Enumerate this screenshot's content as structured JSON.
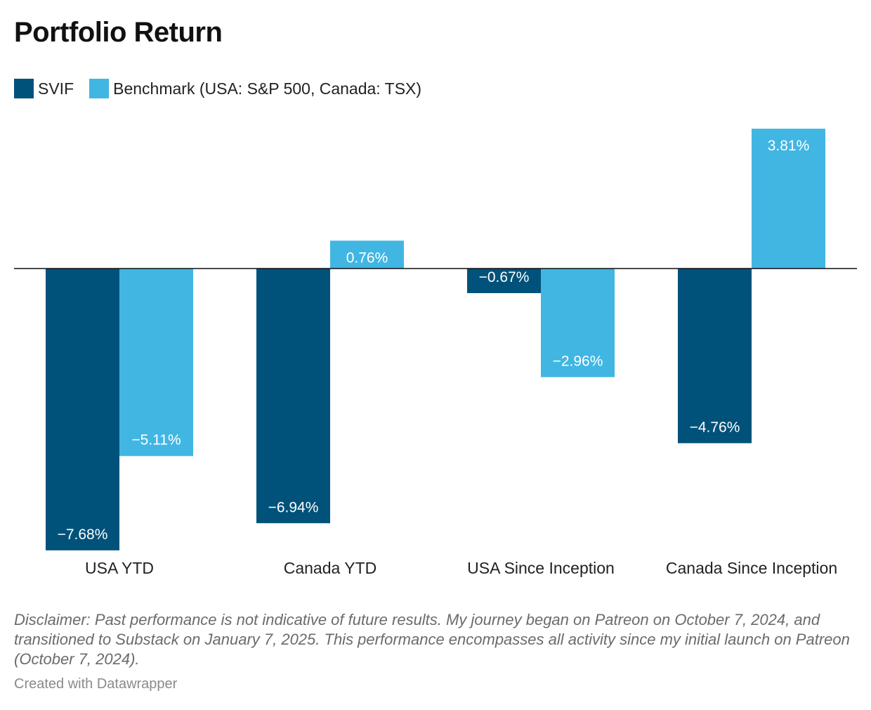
{
  "colors": {
    "svif": "#00527a",
    "benchmark": "#41b6e3",
    "baseline": "#111111"
  },
  "chart_data": {
    "type": "bar",
    "title": "Portfolio Return",
    "categories": [
      "USA YTD",
      "Canada YTD",
      "USA Since Inception",
      "Canada Since Inception"
    ],
    "series": [
      {
        "name": "SVIF",
        "values": [
          -7.68,
          -6.94,
          -0.67,
          -4.76
        ],
        "labels": [
          "−7.68%",
          "−6.94%",
          "−0.67%",
          "−4.76%"
        ]
      },
      {
        "name": "Benchmark (USA: S&P 500, Canada: TSX)",
        "values": [
          -5.11,
          0.76,
          -2.96,
          3.81
        ],
        "labels": [
          "−5.11%",
          "0.76%",
          "−2.96%",
          "3.81%"
        ]
      }
    ],
    "ylim": [
      -7.68,
      3.81
    ],
    "grid": false,
    "legend": "top-left",
    "xlabel": "",
    "ylabel": ""
  },
  "footer": {
    "disclaimer": "Disclaimer: Past performance is not indicative of future results. My journey began on Patreon on October 7, 2024, and transitioned to Substack on January 7, 2025. This performance encompasses all activity since my initial launch on Patreon (October 7, 2024).",
    "credit": "Created with Datawrapper"
  }
}
